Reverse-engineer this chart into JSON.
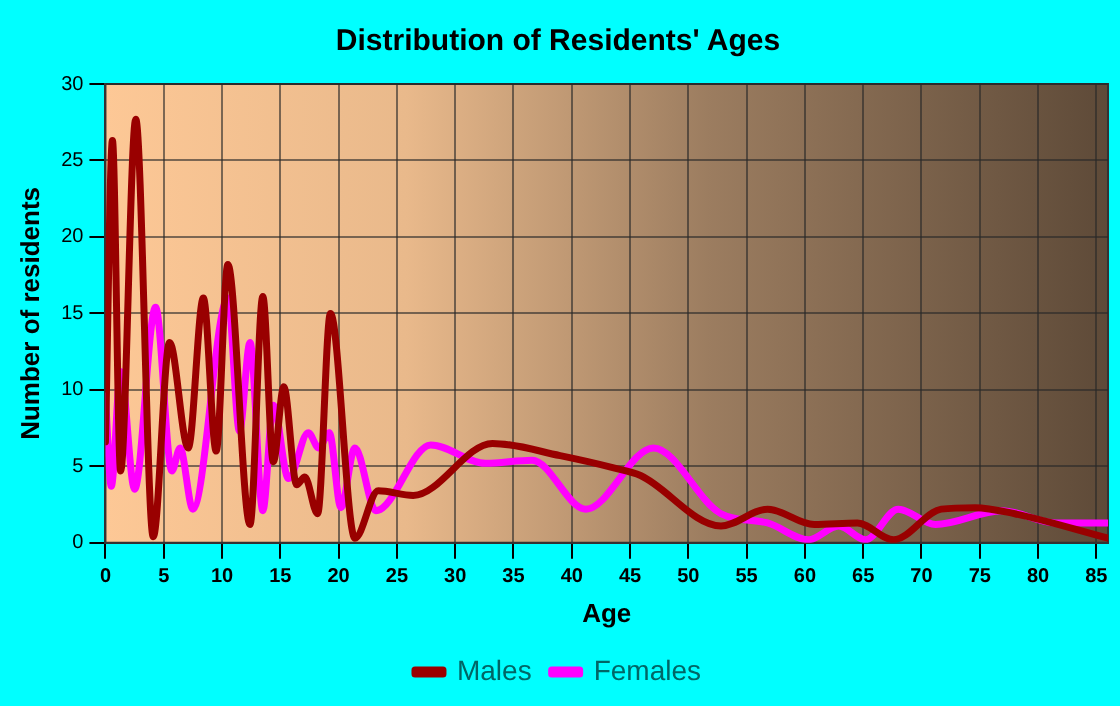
{
  "chart_data": {
    "type": "line",
    "title": "Distribution of Residents' Ages",
    "xlabel": "Age",
    "ylabel": "Number of residents",
    "xlim": [
      0,
      86
    ],
    "xticks": [
      0,
      5,
      10,
      15,
      20,
      25,
      30,
      35,
      40,
      45,
      50,
      55,
      60,
      65,
      70,
      75,
      80,
      85
    ],
    "ylim": [
      0,
      30
    ],
    "yticks": [
      0,
      5,
      10,
      15,
      20,
      25,
      30
    ],
    "grid": true,
    "legend": "bottom",
    "marker": "none",
    "line_style": "solid",
    "series": [
      {
        "name": "Males",
        "color": "#990000",
        "x": [
          0,
          0.6,
          1.3,
          2.6,
          4.1,
          5.5,
          7.1,
          8.4,
          9.5,
          10.5,
          12.4,
          13.5,
          14.4,
          15.3,
          16.4,
          17.1,
          18.2,
          19.3,
          21.4,
          23.4,
          26.4,
          33.2,
          39,
          43.6,
          45.9,
          52.8,
          56.8,
          60.8,
          64.5,
          67.6,
          71.7,
          74.6,
          78,
          86
        ],
        "values": [
          6.6,
          26.3,
          4.7,
          27.7,
          0.4,
          13.1,
          6.2,
          16,
          6,
          18.2,
          1.2,
          16.1,
          5.3,
          10.2,
          3.8,
          4.3,
          1.9,
          15,
          0.3,
          3.4,
          3.1,
          6.5,
          5.7,
          4.9,
          4.4,
          1.1,
          2.2,
          1.2,
          1.3,
          0.2,
          2.2,
          2.3,
          1.9,
          0.3
        ]
      },
      {
        "name": "Females",
        "color": "#ff00ff",
        "x": [
          0,
          0.5,
          1.3,
          2.5,
          4.3,
          5.7,
          6.4,
          7.5,
          10.5,
          11.5,
          12.4,
          13.5,
          14.4,
          15.7,
          17.4,
          18.3,
          19.2,
          20.2,
          21.4,
          23.2,
          27.9,
          32.6,
          36.6,
          41.2,
          47,
          52.8,
          56.8,
          60.3,
          62.9,
          65.2,
          68,
          71.2,
          76.9,
          81.5,
          86
        ],
        "values": [
          9.6,
          3.7,
          11.2,
          3.5,
          15.4,
          4.7,
          6.2,
          2.2,
          16,
          7.3,
          13.1,
          2.1,
          9,
          4.2,
          7.2,
          6.2,
          7.2,
          2.3,
          6.2,
          2.1,
          6.4,
          5.2,
          5.4,
          2.2,
          6.2,
          1.9,
          1.3,
          0.2,
          1.1,
          0.2,
          2.2,
          1.2,
          2.1,
          1.3,
          1.3
        ]
      }
    ]
  }
}
